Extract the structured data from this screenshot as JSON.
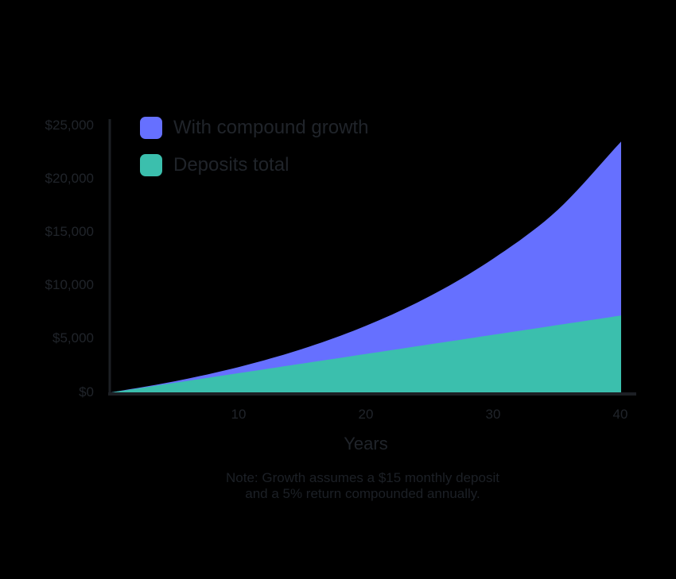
{
  "chart_data": {
    "type": "area",
    "title": "",
    "xlabel": "Years",
    "ylabel": "",
    "xlim": [
      0,
      40
    ],
    "ylim": [
      0,
      25000
    ],
    "x_ticks": [
      10,
      20,
      30,
      40
    ],
    "y_ticks": [
      0,
      5000,
      10000,
      15000,
      20000,
      25000
    ],
    "y_tick_labels": [
      "$0",
      "$5,000",
      "$10,000",
      "$15,000",
      "$20,000",
      "$25,000"
    ],
    "grid": false,
    "legend_position": "top-left",
    "x": [
      0,
      5,
      10,
      15,
      20,
      25,
      30,
      35,
      40
    ],
    "series": [
      {
        "name": "With compound growth",
        "color": "#6670ff",
        "values": [
          0,
          1044,
          2377,
          4078,
          6250,
          9022,
          12557,
          17070,
          23500
        ]
      },
      {
        "name": "Deposits total",
        "color": "#3bbfad",
        "values": [
          0,
          900,
          1800,
          2700,
          3600,
          4500,
          5400,
          6300,
          7200
        ]
      }
    ],
    "annotations": [
      "Note: Growth assumes a $15 monthly deposit and a 5% return compounded annually."
    ]
  },
  "legend": {
    "items": [
      {
        "label": "With compound growth",
        "color": "#6670ff"
      },
      {
        "label": "Deposits total",
        "color": "#3bbfad"
      }
    ]
  },
  "axes": {
    "y_labels": [
      "$25,000",
      "$20,000",
      "$15,000",
      "$10,000",
      "$5,000",
      "$0"
    ],
    "x_labels": [
      "10",
      "20",
      "30",
      "40"
    ],
    "x_title": "Years"
  },
  "note": {
    "line1": "Note: Growth assumes a $15 monthly deposit",
    "line2": "and a 5% return compounded annually."
  }
}
